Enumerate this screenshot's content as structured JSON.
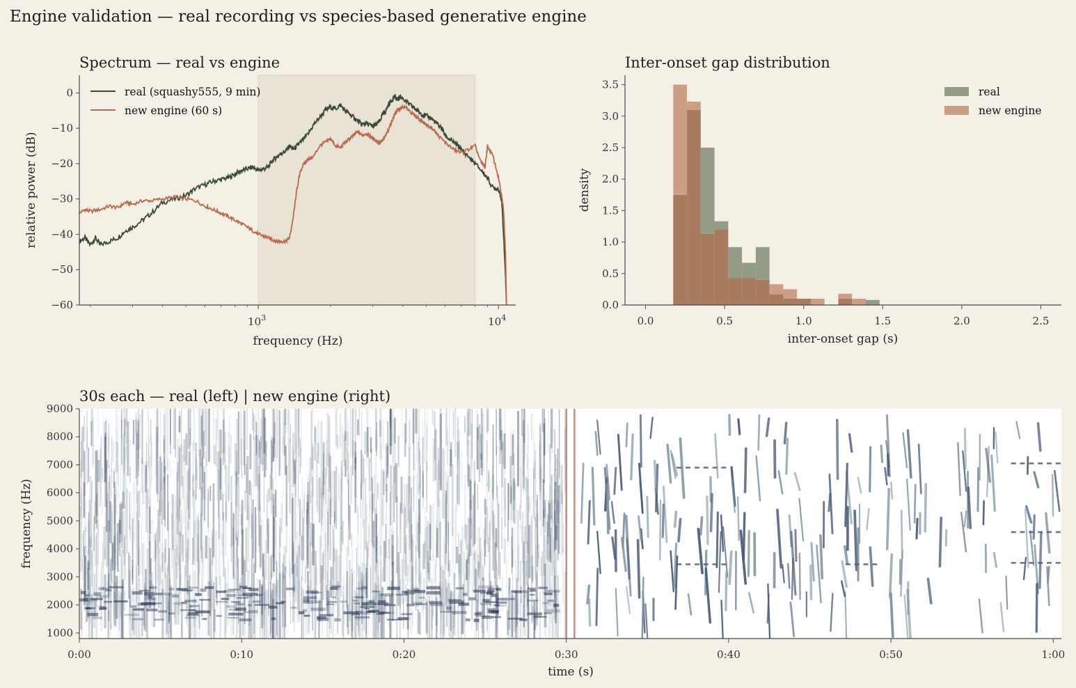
{
  "suptitle": "Engine validation — real recording vs species-based generative engine",
  "colors": {
    "background": "#f5f0e6",
    "real": "#3a4a36",
    "engine": "#b86a4c",
    "shade": "#e9e3d6",
    "hist_real": "#949c88",
    "hist_engine": "#cd9e86",
    "hist_overlap": "#a87a5e",
    "spec_real": "#2d3a58",
    "spec_engine": "#4a5a78",
    "divider": "#bb8b78"
  },
  "chart_data": [
    {
      "type": "line",
      "title": "Spectrum — real vs engine",
      "xlabel": "frequency (Hz)",
      "ylabel": "relative power (dB)",
      "xscale": "log",
      "xlim": [
        180,
        11800
      ],
      "ylim": [
        -60,
        5
      ],
      "yticks": [
        "0",
        "−10",
        "−20",
        "−30",
        "−40",
        "−50",
        "−60"
      ],
      "xticks": [
        {
          "base": "10",
          "exp": "3"
        },
        {
          "base": "10",
          "exp": "4"
        }
      ],
      "shaded_band": [
        1000,
        8000
      ],
      "legend_position": "top-left",
      "series": [
        {
          "name": "real (squashy555, 9 min)",
          "x": [
            180,
            190,
            200,
            210,
            220,
            240,
            260,
            280,
            300,
            330,
            360,
            400,
            450,
            500,
            550,
            600,
            650,
            700,
            750,
            800,
            850,
            900,
            950,
            1000,
            1050,
            1100,
            1150,
            1200,
            1250,
            1300,
            1350,
            1400,
            1450,
            1500,
            1600,
            1700,
            1800,
            1900,
            2000,
            2100,
            2200,
            2300,
            2400,
            2500,
            2600,
            2700,
            2800,
            2900,
            3000,
            3100,
            3200,
            3300,
            3400,
            3500,
            3600,
            3700,
            3800,
            3900,
            4000,
            4200,
            4400,
            4600,
            4800,
            5000,
            5200,
            5400,
            5600,
            5800,
            6000,
            6200,
            6500,
            6800,
            7000,
            7500,
            8000,
            8500,
            9000,
            9500,
            10000,
            10300,
            10500,
            10700,
            10800
          ],
          "values": [
            -42,
            -41,
            -43,
            -41,
            -43,
            -42,
            -41,
            -39,
            -38,
            -36,
            -34,
            -31,
            -30,
            -29,
            -27,
            -26,
            -25,
            -24.5,
            -24,
            -23,
            -22,
            -21.5,
            -21,
            -22,
            -21.5,
            -21,
            -19,
            -18,
            -17,
            -16.5,
            -15,
            -16,
            -15,
            -14,
            -12,
            -9,
            -7,
            -5,
            -4,
            -4.5,
            -3.5,
            -5,
            -6,
            -7,
            -8,
            -9,
            -8.5,
            -9,
            -9.5,
            -9,
            -8,
            -6,
            -5,
            -3,
            -2,
            -1,
            -2,
            -1,
            -1.5,
            -3,
            -4,
            -5,
            -6,
            -6.5,
            -7,
            -8,
            -9,
            -10,
            -12,
            -13,
            -14,
            -15,
            -16,
            -18,
            -20,
            -22,
            -24,
            -27,
            -27,
            -30,
            -40,
            -52,
            -60
          ]
        },
        {
          "name": "new engine (60 s)",
          "x": [
            180,
            190,
            200,
            220,
            240,
            260,
            280,
            300,
            330,
            360,
            400,
            450,
            500,
            550,
            600,
            650,
            700,
            750,
            800,
            850,
            900,
            950,
            1000,
            1050,
            1100,
            1150,
            1200,
            1250,
            1300,
            1350,
            1400,
            1450,
            1500,
            1550,
            1600,
            1700,
            1800,
            1900,
            2000,
            2100,
            2200,
            2300,
            2400,
            2500,
            2600,
            2700,
            2800,
            2900,
            3000,
            3100,
            3200,
            3300,
            3400,
            3500,
            3600,
            3700,
            3800,
            3900,
            4000,
            4200,
            4400,
            4600,
            4800,
            5000,
            5300,
            5600,
            6000,
            6500,
            7000,
            7500,
            8000,
            8500,
            8800,
            9000,
            9500,
            10000,
            10300,
            10500,
            10700,
            10800
          ],
          "values": [
            -34,
            -33,
            -33.5,
            -33,
            -32,
            -32.5,
            -31,
            -31.5,
            -30.5,
            -30.5,
            -30,
            -29.5,
            -30,
            -30.5,
            -32,
            -33,
            -34,
            -35,
            -36,
            -37,
            -38,
            -39,
            -40,
            -40.5,
            -41,
            -41.5,
            -42,
            -42,
            -42,
            -41,
            -35,
            -27,
            -22,
            -20,
            -19,
            -18,
            -15,
            -14,
            -13,
            -15,
            -15.5,
            -14,
            -13,
            -12,
            -11,
            -12,
            -11.5,
            -12,
            -13,
            -13.5,
            -14,
            -13.5,
            -12,
            -10,
            -8,
            -6,
            -5,
            -4.5,
            -4,
            -4.5,
            -6,
            -7,
            -8,
            -9,
            -10,
            -12,
            -14,
            -16,
            -17,
            -16,
            -15,
            -20,
            -21,
            -15,
            -18,
            -24,
            -29,
            -33,
            -45,
            -60
          ]
        }
      ]
    },
    {
      "type": "bar",
      "title": "Inter-onset gap distribution",
      "xlabel": "inter-onset gap (s)",
      "ylabel": "density",
      "xlim": [
        -0.13,
        2.63
      ],
      "ylim": [
        0,
        3.65
      ],
      "xticks": [
        "0.0",
        "0.5",
        "1.0",
        "1.5",
        "2.0",
        "2.5"
      ],
      "yticks": [
        "0.0",
        "0.5",
        "1.0",
        "1.5",
        "2.0",
        "2.5",
        "3.0",
        "3.5"
      ],
      "legend_position": "top-right",
      "bin_edges": [
        0.175,
        0.262,
        0.349,
        0.436,
        0.523,
        0.61,
        0.697,
        0.784,
        0.871,
        0.958,
        1.045,
        1.132,
        1.219,
        1.306,
        1.393,
        1.48
      ],
      "series": [
        {
          "name": "real",
          "values": [
            1.75,
            3.1,
            2.5,
            1.33,
            0.92,
            0.67,
            0.92,
            0.17,
            0.1,
            0.1,
            0.0,
            0.0,
            0.1,
            0.0,
            0.08
          ]
        },
        {
          "name": "new engine",
          "values": [
            3.5,
            3.23,
            1.13,
            1.2,
            0.43,
            0.43,
            0.4,
            0.33,
            0.25,
            0.1,
            0.1,
            0.0,
            0.18,
            0.1,
            0.0
          ]
        }
      ]
    },
    {
      "type": "heatmap",
      "title": "30s each — real (left) | new engine (right)",
      "xlabel": "time (s)",
      "ylabel": "frequency (Hz)",
      "xlim": [
        0,
        60.5
      ],
      "ylim": [
        800,
        9000
      ],
      "xticks": [
        "0:00",
        "0:10",
        "0:20",
        "0:30",
        "0:40",
        "0:50",
        "1:00"
      ],
      "yticks": [
        "9000",
        "8000",
        "7000",
        "6000",
        "5000",
        "4000",
        "3000",
        "2000",
        "1000"
      ],
      "divider_times": [
        30.0,
        30.5
      ]
    }
  ]
}
